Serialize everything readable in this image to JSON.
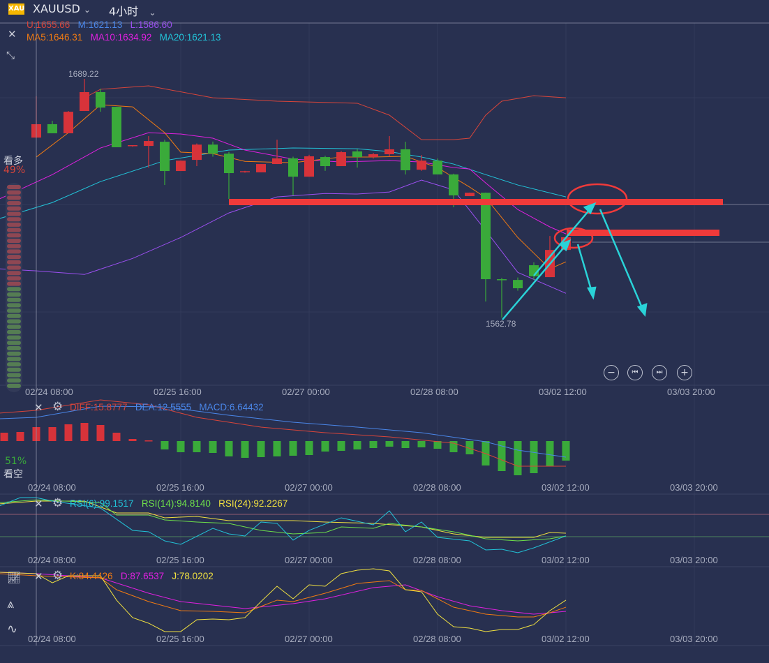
{
  "header": {
    "logo": "XAU",
    "symbol": "XAUUSD",
    "period": "4小时"
  },
  "boll_legend": {
    "upper": "U:1655.66",
    "mid": "M:1621.13",
    "lower": "L:1586.60"
  },
  "ma_legend": {
    "ma5": "MA5:1646.31",
    "ma10": "MA10:1634.92",
    "ma20": "MA20:1621.13"
  },
  "price_labels": {
    "high": "1689.22",
    "low": "1562.78"
  },
  "sentiment": {
    "bull_label": "看多",
    "bull_pct": "49%",
    "bear_label": "看空",
    "bear_pct": "51%",
    "bull_fraction": 0.49
  },
  "macd_legend": {
    "diff": "DIFF:15.8777",
    "dea": "DEA:12.5555",
    "macd": "MACD:6.64432"
  },
  "rsi_legend": {
    "rsi6": "RSI(6):99.1517",
    "rsi14": "RSI(14):94.8140",
    "rsi24": "RSI(24):92.2267"
  },
  "kdj_legend": {
    "k": "K:84.4426",
    "d": "D:87.6537",
    "j": "J:78.0202"
  },
  "time_axis": [
    "02/24 08:00",
    "02/25 16:00",
    "02/27 00:00",
    "02/28 08:00",
    "03/02 12:00",
    "03/03 20:00"
  ],
  "colors": {
    "up": "#d8333a",
    "down": "#3aaa3a",
    "boll_upper": "#d8453a",
    "boll_mid": "#22c3d8",
    "boll_lower": "#9b4ff0",
    "ma5": "#f07a12",
    "ma10": "#e020e0",
    "annot_red": "#f03a3a",
    "annot_cyan": "#2ad3d8"
  },
  "annotations": {
    "levels": [
      1624.1,
      1607.8
    ]
  },
  "chart_data": {
    "type": "candlestick",
    "candles": [
      [
        1658.1,
        1680.0,
        1658.1,
        1665.2
      ],
      [
        1665.2,
        1667.0,
        1660.4,
        1660.4
      ],
      [
        1660.4,
        1672.2,
        1660.4,
        1671.8
      ],
      [
        1672.2,
        1689.22,
        1672.2,
        1682.2
      ],
      [
        1682.2,
        1684.0,
        1671.8,
        1674.0
      ],
      [
        1674.4,
        1674.4,
        1653.0,
        1653.0
      ],
      [
        1653.7,
        1654.1,
        1653.3,
        1654.1
      ],
      [
        1653.7,
        1658.9,
        1642.2,
        1656.3
      ],
      [
        1655.9,
        1657.0,
        1633.0,
        1640.4
      ],
      [
        1640.4,
        1646.0,
        1640.4,
        1645.9
      ],
      [
        1646.3,
        1655.0,
        1643.0,
        1654.4
      ],
      [
        1654.4,
        1656.0,
        1648.0,
        1649.6
      ],
      [
        1649.6,
        1650.5,
        1625.6,
        1639.3
      ],
      [
        1640.0,
        1640.5,
        1639.5,
        1640.3
      ],
      [
        1639.7,
        1644.0,
        1639.7,
        1644.1
      ],
      [
        1644.1,
        1657.0,
        1644.1,
        1647.1
      ],
      [
        1647.1,
        1648.0,
        1627.5,
        1637.4
      ],
      [
        1637.4,
        1649.0,
        1637.4,
        1648.2
      ],
      [
        1647.8,
        1648.5,
        1640.5,
        1643.0
      ],
      [
        1643.0,
        1651.0,
        1643.0,
        1650.4
      ],
      [
        1650.8,
        1652.0,
        1642.2,
        1647.8
      ],
      [
        1647.8,
        1650.0,
        1647.0,
        1649.3
      ],
      [
        1649.3,
        1658.9,
        1648.0,
        1651.9
      ],
      [
        1651.9,
        1655.9,
        1638.6,
        1640.8
      ],
      [
        1641.1,
        1648.9,
        1640.5,
        1645.9
      ],
      [
        1645.9,
        1647.0,
        1638.6,
        1638.6
      ],
      [
        1638.6,
        1639.0,
        1621.2,
        1627.5
      ],
      [
        1627.1,
        1629.0,
        1627.1,
        1628.9
      ],
      [
        1628.9,
        1629.0,
        1571.3,
        1583.1
      ],
      [
        1583.1,
        1583.8,
        1562.8,
        1583.0
      ],
      [
        1582.7,
        1584.0,
        1577.0,
        1578.3
      ],
      [
        1590.5,
        1592.0,
        1583.0,
        1584.6
      ],
      [
        1584.2,
        1606.0,
        1584.2,
        1598.6
      ],
      [
        1598.6,
        1605.3,
        1598.6,
        1605.3
      ]
    ],
    "overlays": {
      "boll_upper": [
        [
          3,
          1679.2
        ],
        [
          4,
          1683.7
        ],
        [
          7,
          1685.5
        ],
        [
          11,
          1679.2
        ],
        [
          15,
          1677.4
        ],
        [
          20,
          1676.3
        ],
        [
          22,
          1670.0
        ],
        [
          24,
          1657.0
        ],
        [
          26,
          1657.0
        ],
        [
          27,
          1657.8
        ],
        [
          28,
          1670.0
        ],
        [
          29,
          1677.4
        ],
        [
          31,
          1680.3
        ],
        [
          33,
          1679.2
        ]
      ],
      "boll_mid": [
        [
          -2.3,
          1615.2
        ],
        [
          1,
          1623.7
        ],
        [
          4,
          1634.8
        ],
        [
          8,
          1645.9
        ],
        [
          12,
          1651.5
        ],
        [
          16,
          1652.6
        ],
        [
          20,
          1652.2
        ],
        [
          22,
          1650.7
        ],
        [
          24,
          1647.8
        ],
        [
          26,
          1644.1
        ],
        [
          28,
          1638.5
        ],
        [
          30,
          1633.0
        ],
        [
          33,
          1626.7
        ]
      ],
      "boll_lower": [
        [
          -2.3,
          1588.6
        ],
        [
          0,
          1587.5
        ],
        [
          3,
          1585.6
        ],
        [
          6,
          1594.1
        ],
        [
          9,
          1605.2
        ],
        [
          12,
          1618.2
        ],
        [
          15,
          1626.7
        ],
        [
          18,
          1628.5
        ],
        [
          20,
          1628.2
        ],
        [
          22,
          1629.3
        ],
        [
          24,
          1635.6
        ],
        [
          26,
          1630.4
        ],
        [
          28,
          1608.9
        ],
        [
          30,
          1586.7
        ],
        [
          33,
          1575.6
        ]
      ],
      "ma10": [
        [
          -2.3,
          1625.6
        ],
        [
          1,
          1638.5
        ],
        [
          4,
          1652.6
        ],
        [
          7,
          1660.7
        ],
        [
          9,
          1660.0
        ],
        [
          11,
          1657.8
        ],
        [
          13,
          1651.5
        ],
        [
          16,
          1646.7
        ],
        [
          19,
          1645.2
        ],
        [
          22,
          1645.9
        ],
        [
          24,
          1645.2
        ],
        [
          26,
          1642.2
        ],
        [
          27,
          1641.5
        ],
        [
          28,
          1634.1
        ],
        [
          30,
          1620.0
        ],
        [
          32,
          1610.8
        ],
        [
          33,
          1607.1
        ]
      ],
      "ma5": [
        [
          0,
          1647.8
        ],
        [
          2,
          1660.7
        ],
        [
          4,
          1675.5
        ],
        [
          6,
          1674.4
        ],
        [
          8,
          1660.7
        ],
        [
          9,
          1650.4
        ],
        [
          11,
          1649.6
        ],
        [
          13,
          1645.5
        ],
        [
          16,
          1644.8
        ],
        [
          19,
          1647.8
        ],
        [
          21,
          1647.8
        ],
        [
          23,
          1648.2
        ],
        [
          25,
          1642.2
        ],
        [
          27,
          1631.9
        ],
        [
          28,
          1626.3
        ],
        [
          30,
          1605.2
        ],
        [
          32,
          1588.6
        ],
        [
          33,
          1592.3
        ]
      ]
    },
    "macd": {
      "hist_start_index": -2,
      "hist": [
        4.8,
        5.2,
        8,
        8,
        9.6,
        10.4,
        9.2,
        4.8,
        1.2,
        0.4,
        -4.8,
        -6.4,
        -6.4,
        -6.8,
        -8.8,
        -9.6,
        -9.2,
        -8.8,
        -8.4,
        -8,
        -6,
        -5.6,
        -4.8,
        -4,
        -3.2,
        -4,
        -3.6,
        -4.4,
        -6.4,
        -7.6,
        -14,
        -17.2,
        -19.6,
        -18.4,
        -14.4,
        -11.2
      ],
      "diff": [
        [
          -2.3,
          16
        ],
        [
          0,
          17.6
        ],
        [
          4,
          23.6
        ],
        [
          7,
          20.8
        ],
        [
          10,
          13.6
        ],
        [
          14,
          8
        ],
        [
          18,
          4.8
        ],
        [
          22,
          2.4
        ],
        [
          26,
          -1.2
        ],
        [
          28,
          -7.2
        ],
        [
          30,
          -14.4
        ],
        [
          33,
          -14.4
        ]
      ],
      "dea": [
        [
          -2.3,
          12.8
        ],
        [
          0,
          13.6
        ],
        [
          4,
          20
        ],
        [
          8,
          19.6
        ],
        [
          12,
          14.8
        ],
        [
          16,
          10.8
        ],
        [
          20,
          8
        ],
        [
          24,
          4.8
        ],
        [
          28,
          -0.4
        ],
        [
          30,
          -5.2
        ],
        [
          33,
          -9.2
        ]
      ]
    },
    "rsi": {
      "levels": [
        70,
        30
      ],
      "rsi6": [
        [
          -2.3,
          85
        ],
        [
          -1,
          100
        ],
        [
          0,
          100
        ],
        [
          1,
          93.8
        ],
        [
          4,
          81.3
        ],
        [
          6,
          41.3
        ],
        [
          7,
          38.8
        ],
        [
          8,
          22.5
        ],
        [
          9,
          16.3
        ],
        [
          11,
          45
        ],
        [
          12,
          35
        ],
        [
          13,
          31.3
        ],
        [
          14,
          56.3
        ],
        [
          15,
          53.8
        ],
        [
          16,
          23.8
        ],
        [
          17,
          41.3
        ],
        [
          19,
          63.8
        ],
        [
          21,
          51.3
        ],
        [
          22,
          76.3
        ],
        [
          23,
          38.8
        ],
        [
          24,
          56.3
        ],
        [
          25,
          28.8
        ],
        [
          27,
          22.5
        ],
        [
          28,
          6.3
        ],
        [
          29,
          7.5
        ],
        [
          30,
          1.3
        ],
        [
          31,
          10
        ],
        [
          33,
          31.3
        ]
      ],
      "rsi14": [
        [
          -2.3,
          91
        ],
        [
          0,
          96
        ],
        [
          4,
          91
        ],
        [
          5,
          68.8
        ],
        [
          7,
          68.8
        ],
        [
          8,
          60
        ],
        [
          10,
          56.3
        ],
        [
          12,
          53.8
        ],
        [
          14,
          41.3
        ],
        [
          16,
          35
        ],
        [
          18,
          37.5
        ],
        [
          19,
          47.5
        ],
        [
          21,
          45
        ],
        [
          22,
          53.8
        ],
        [
          24,
          47.5
        ],
        [
          26,
          38.8
        ],
        [
          28,
          26.3
        ],
        [
          30,
          22.5
        ],
        [
          32,
          26.3
        ],
        [
          33,
          31.3
        ]
      ],
      "rsi24": [
        [
          -2.3,
          88.8
        ],
        [
          0,
          93.8
        ],
        [
          3,
          93.8
        ],
        [
          5,
          72.5
        ],
        [
          7,
          72.5
        ],
        [
          8,
          63.8
        ],
        [
          10,
          66.3
        ],
        [
          12,
          58.8
        ],
        [
          16,
          58.8
        ],
        [
          18,
          56.3
        ],
        [
          21,
          53.8
        ],
        [
          24,
          47.5
        ],
        [
          26,
          35
        ],
        [
          28,
          28.8
        ],
        [
          31,
          28.8
        ],
        [
          32,
          37.5
        ],
        [
          33,
          36.3
        ]
      ]
    },
    "kdj": {
      "k": [
        [
          -2.3,
          97.8
        ],
        [
          0,
          94.4
        ],
        [
          4,
          91.1
        ],
        [
          5,
          72.2
        ],
        [
          7,
          53.3
        ],
        [
          9,
          38.9
        ],
        [
          11,
          37.8
        ],
        [
          13,
          35.6
        ],
        [
          15,
          55.6
        ],
        [
          16,
          53.3
        ],
        [
          18,
          66.7
        ],
        [
          20,
          82.2
        ],
        [
          22,
          86.7
        ],
        [
          23,
          72.2
        ],
        [
          24,
          71.1
        ],
        [
          26,
          44.4
        ],
        [
          28,
          33.3
        ],
        [
          30,
          28.9
        ],
        [
          31,
          28.9
        ],
        [
          32,
          35.6
        ],
        [
          33,
          44.4
        ]
      ],
      "d": [
        [
          -2.3,
          100
        ],
        [
          0,
          97.8
        ],
        [
          4,
          91.1
        ],
        [
          7,
          66.7
        ],
        [
          9,
          53.3
        ],
        [
          11,
          47.8
        ],
        [
          13,
          42.2
        ],
        [
          16,
          50
        ],
        [
          18,
          57.8
        ],
        [
          21,
          75.6
        ],
        [
          23,
          80
        ],
        [
          25,
          61.1
        ],
        [
          27,
          46.7
        ],
        [
          29,
          38.9
        ],
        [
          31,
          33.3
        ],
        [
          33,
          37.8
        ]
      ],
      "j": [
        [
          -2.3,
          100
        ],
        [
          0,
          97.8
        ],
        [
          1,
          83.3
        ],
        [
          2,
          94.4
        ],
        [
          4,
          94.4
        ],
        [
          5,
          55.6
        ],
        [
          6,
          27.8
        ],
        [
          7,
          18.9
        ],
        [
          8,
          5.6
        ],
        [
          9,
          5.6
        ],
        [
          10,
          24.4
        ],
        [
          11,
          25.6
        ],
        [
          12,
          24.4
        ],
        [
          13,
          27.8
        ],
        [
          14,
          53.3
        ],
        [
          15,
          77.8
        ],
        [
          16,
          57.8
        ],
        [
          17,
          80
        ],
        [
          18,
          77.8
        ],
        [
          19,
          97.8
        ],
        [
          20,
          103.3
        ],
        [
          21,
          105.6
        ],
        [
          22,
          102.2
        ],
        [
          23,
          72.2
        ],
        [
          24,
          68.9
        ],
        [
          25,
          33.3
        ],
        [
          26,
          13.3
        ],
        [
          27,
          11.1
        ],
        [
          28,
          5.6
        ],
        [
          29,
          8.9
        ],
        [
          30,
          8.9
        ],
        [
          31,
          16.7
        ],
        [
          32,
          38.9
        ],
        [
          33,
          55.6
        ]
      ]
    }
  }
}
